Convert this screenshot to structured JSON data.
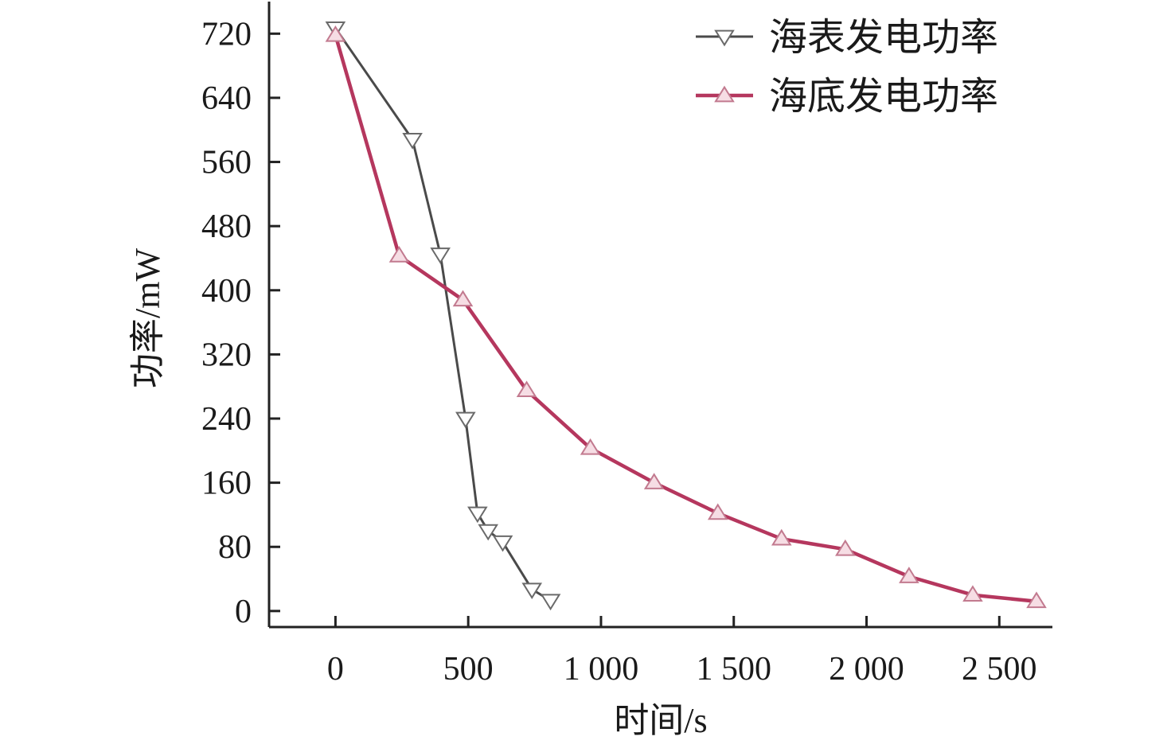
{
  "chart_data": {
    "type": "line",
    "xlabel": "时间/s",
    "ylabel": "功率/mW",
    "xlim": [
      -250,
      2700
    ],
    "ylim": [
      -20,
      760
    ],
    "x_ticks": [
      0,
      500,
      1000,
      1500,
      2000,
      2500
    ],
    "x_tick_labels": [
      "0",
      "500",
      "1 000",
      "1 500",
      "2 000",
      "2 500"
    ],
    "y_ticks": [
      0,
      80,
      160,
      240,
      320,
      400,
      480,
      560,
      640,
      720
    ],
    "y_tick_labels": [
      "0",
      "80",
      "160",
      "240",
      "320",
      "400",
      "480",
      "560",
      "640",
      "720"
    ],
    "grid": false,
    "legend_position": "top-right",
    "series": [
      {
        "name": "海表发电功率",
        "color": "#4a4a4a",
        "marker": "triangle-down",
        "points": [
          [
            0,
            727
          ],
          [
            290,
            588
          ],
          [
            395,
            445
          ],
          [
            490,
            240
          ],
          [
            535,
            122
          ],
          [
            575,
            100
          ],
          [
            630,
            86
          ],
          [
            740,
            27
          ],
          [
            810,
            13
          ]
        ]
      },
      {
        "name": "海底发电功率",
        "color": "#b5375e",
        "marker": "triangle-up",
        "points": [
          [
            0,
            718
          ],
          [
            240,
            443
          ],
          [
            480,
            388
          ],
          [
            720,
            275
          ],
          [
            960,
            203
          ],
          [
            1200,
            160
          ],
          [
            1440,
            122
          ],
          [
            1680,
            90
          ],
          [
            1920,
            77
          ],
          [
            2160,
            43
          ],
          [
            2400,
            20
          ],
          [
            2640,
            12
          ]
        ]
      }
    ]
  }
}
